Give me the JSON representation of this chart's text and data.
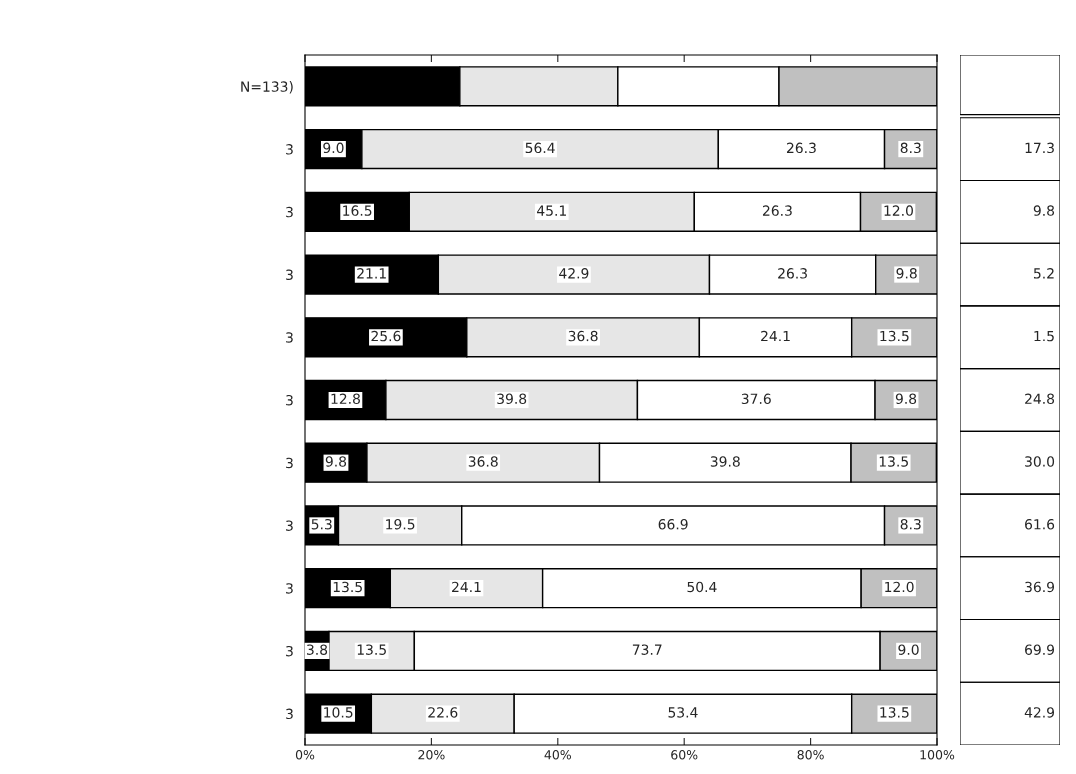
{
  "chart_data": [
    {
      "type": "bar",
      "orientation": "horizontal",
      "stacked": true,
      "categories": [
        "N=133)",
        "3",
        "3",
        "3",
        "3",
        "3",
        "3",
        "3",
        "3",
        "3",
        "3"
      ],
      "xlim": [
        0,
        100
      ],
      "xticks": [
        {
          "value": 0,
          "label": "0%"
        },
        {
          "value": 20,
          "label": "20%"
        },
        {
          "value": 40,
          "label": "40%"
        },
        {
          "value": 60,
          "label": "60%"
        },
        {
          "value": 80,
          "label": "80%"
        },
        {
          "value": 100,
          "label": "100%"
        }
      ],
      "grid": false,
      "legend": false,
      "series": [
        {
          "color": "#000000",
          "values": [
            24.5,
            9.0,
            16.5,
            21.1,
            25.6,
            12.8,
            9.8,
            5.3,
            13.5,
            3.8,
            10.5
          ],
          "value_labels": [
            null,
            "9.0",
            "16.5",
            "21.1",
            "25.6",
            "12.8",
            "9.8",
            "5.3",
            "13.5",
            "3.8",
            "10.5"
          ]
        },
        {
          "color": "#e6e6e6",
          "values": [
            25.0,
            56.4,
            45.1,
            42.9,
            36.8,
            39.8,
            36.8,
            19.5,
            24.1,
            13.5,
            22.6
          ],
          "value_labels": [
            null,
            "56.4",
            "45.1",
            "42.9",
            "36.8",
            "39.8",
            "36.8",
            "19.5",
            "24.1",
            "13.5",
            "22.6"
          ]
        },
        {
          "color": "#ffffff",
          "values": [
            25.5,
            26.3,
            26.3,
            26.3,
            24.1,
            37.6,
            39.8,
            66.9,
            50.4,
            73.7,
            53.4
          ],
          "value_labels": [
            null,
            "26.3",
            "26.3",
            "26.3",
            "24.1",
            "37.6",
            "39.8",
            "66.9",
            "50.4",
            "73.7",
            "53.4"
          ]
        },
        {
          "color": "#c0c0c0",
          "values": [
            25.0,
            8.3,
            12.0,
            9.8,
            13.5,
            9.8,
            13.5,
            8.3,
            12.0,
            9.0,
            13.5
          ],
          "value_labels": [
            null,
            "8.3",
            "12.0",
            "9.8",
            "13.5",
            "9.8",
            "13.5",
            "8.3",
            "12.0",
            "9.0",
            "13.5"
          ]
        }
      ]
    },
    {
      "type": "other",
      "annotations": [
        "17.3",
        "9.8",
        "5.2",
        "1.5",
        "24.8",
        "30.0",
        "61.6",
        "36.9",
        "69.9",
        "42.9"
      ]
    }
  ]
}
